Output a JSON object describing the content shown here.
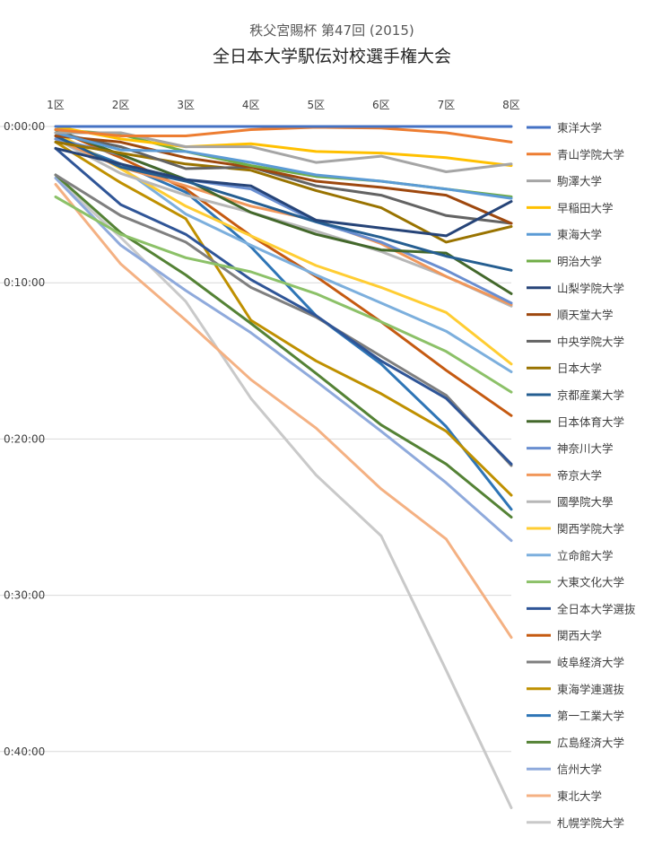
{
  "chart_data": {
    "type": "line",
    "title": "全日本大学駅伝対校選手権大会",
    "subtitle": "秩父宮賜杯 第47回 (2015)",
    "xlabel": "",
    "ylabel": "",
    "categories": [
      "1区",
      "2区",
      "3区",
      "4区",
      "5区",
      "6区",
      "7区",
      "8区"
    ],
    "y_ticks": [
      "0:00:00",
      "0:10:00",
      "0:20:00",
      "0:30:00",
      "0:40:00"
    ],
    "ylim_minutes": [
      0,
      44
    ],
    "y_reversed": true,
    "grid": true,
    "legend_position": "right",
    "series": [
      {
        "name": "東洋大学",
        "color": "#4472C4",
        "values": [
          0.0,
          0.0,
          0.0,
          0.0,
          0.0,
          0.0,
          0.0,
          0.0
        ]
      },
      {
        "name": "青山学院大学",
        "color": "#ED7D31",
        "values": [
          0.2,
          0.6,
          0.6,
          0.2,
          0.05,
          0.1,
          0.4,
          1.0
        ]
      },
      {
        "name": "駒澤大学",
        "color": "#A5A5A5",
        "values": [
          0.4,
          0.4,
          1.3,
          1.3,
          2.3,
          1.9,
          2.9,
          2.4
        ]
      },
      {
        "name": "早稲田大学",
        "color": "#FFC000",
        "values": [
          0.0,
          0.8,
          1.3,
          1.1,
          1.6,
          1.7,
          2.0,
          2.5
        ]
      },
      {
        "name": "東海大学",
        "color": "#5B9BD5",
        "values": [
          0.4,
          1.5,
          1.6,
          2.3,
          3.1,
          3.5,
          4.0,
          4.6
        ]
      },
      {
        "name": "明治大学",
        "color": "#70AD47",
        "values": [
          0.2,
          0.5,
          1.6,
          2.5,
          3.2,
          3.5,
          4.0,
          4.5
        ]
      },
      {
        "name": "山梨学院大学",
        "color": "#264478",
        "values": [
          1.4,
          2.4,
          3.4,
          3.8,
          6.0,
          6.5,
          7.0,
          4.8
        ]
      },
      {
        "name": "順天堂大学",
        "color": "#9E480E",
        "values": [
          0.6,
          1.0,
          2.0,
          2.6,
          3.5,
          3.9,
          4.4,
          6.2
        ]
      },
      {
        "name": "中央学院大学",
        "color": "#636363",
        "values": [
          0.4,
          1.3,
          2.7,
          2.6,
          3.8,
          4.4,
          5.7,
          6.2
        ]
      },
      {
        "name": "日本大学",
        "color": "#997300",
        "values": [
          1.0,
          1.7,
          2.4,
          2.8,
          4.1,
          5.2,
          7.4,
          6.4
        ]
      },
      {
        "name": "京都産業大学",
        "color": "#255E91",
        "values": [
          0.6,
          2.6,
          3.5,
          4.8,
          6.1,
          7.1,
          8.3,
          9.2
        ]
      },
      {
        "name": "日本体育大学",
        "color": "#43682B",
        "values": [
          0.2,
          1.8,
          3.4,
          5.5,
          6.9,
          7.9,
          8.1,
          10.7
        ]
      },
      {
        "name": "神奈川大学",
        "color": "#698ED0",
        "values": [
          0.8,
          1.8,
          3.4,
          4.0,
          6.1,
          7.4,
          9.2,
          11.3
        ]
      },
      {
        "name": "帝京大学",
        "color": "#F1975A",
        "values": [
          0.8,
          2.6,
          3.8,
          5.1,
          6.0,
          7.5,
          9.6,
          11.4
        ]
      },
      {
        "name": "國學院大學",
        "color": "#B7B7B7",
        "values": [
          0.8,
          3.0,
          4.4,
          5.5,
          6.7,
          8.0,
          9.6,
          11.5
        ]
      },
      {
        "name": "関西学院大学",
        "color": "#FFCD33",
        "values": [
          0.4,
          2.7,
          5.1,
          7.0,
          8.9,
          10.3,
          11.9,
          15.2
        ]
      },
      {
        "name": "立命館大学",
        "color": "#7CAFDD",
        "values": [
          0.8,
          2.6,
          5.6,
          7.6,
          9.5,
          11.3,
          13.1,
          15.7
        ]
      },
      {
        "name": "大東文化大学",
        "color": "#8CC168",
        "values": [
          4.5,
          6.9,
          8.4,
          9.3,
          10.7,
          12.5,
          14.4,
          17.0
        ]
      },
      {
        "name": "全日本大学選抜",
        "color": "#2F5597",
        "values": [
          1.4,
          5.0,
          6.9,
          9.8,
          12.1,
          15.0,
          17.4,
          21.6
        ]
      },
      {
        "name": "関西大学",
        "color": "#C55A11",
        "values": [
          0.2,
          2.0,
          4.0,
          7.0,
          9.6,
          12.5,
          15.6,
          18.5
        ]
      },
      {
        "name": "岐阜経済大学",
        "color": "#7F7F7F",
        "values": [
          3.1,
          5.7,
          7.4,
          10.3,
          12.2,
          14.7,
          17.2,
          21.7
        ]
      },
      {
        "name": "東海学連選抜",
        "color": "#BF9000",
        "values": [
          1.0,
          3.6,
          5.9,
          12.4,
          15.0,
          17.1,
          19.5,
          23.6
        ]
      },
      {
        "name": "第一工業大学",
        "color": "#2E75B6",
        "values": [
          0.8,
          2.4,
          4.2,
          7.7,
          12.1,
          15.2,
          19.2,
          24.5
        ]
      },
      {
        "name": "広島経済大学",
        "color": "#548235",
        "values": [
          3.1,
          6.8,
          9.5,
          12.6,
          15.8,
          19.1,
          21.6,
          25.0
        ]
      },
      {
        "name": "信州大学",
        "color": "#8FAADC",
        "values": [
          3.3,
          7.6,
          10.5,
          13.2,
          16.3,
          19.5,
          22.8,
          26.5
        ]
      },
      {
        "name": "東北大学",
        "color": "#F4B183",
        "values": [
          3.7,
          8.8,
          12.4,
          16.2,
          19.3,
          23.2,
          26.4,
          32.7
        ]
      },
      {
        "name": "札幌学院大学",
        "color": "#C9C9C9",
        "values": [
          3.3,
          7.1,
          11.2,
          17.4,
          22.3,
          26.2,
          34.8,
          43.6
        ]
      }
    ]
  }
}
